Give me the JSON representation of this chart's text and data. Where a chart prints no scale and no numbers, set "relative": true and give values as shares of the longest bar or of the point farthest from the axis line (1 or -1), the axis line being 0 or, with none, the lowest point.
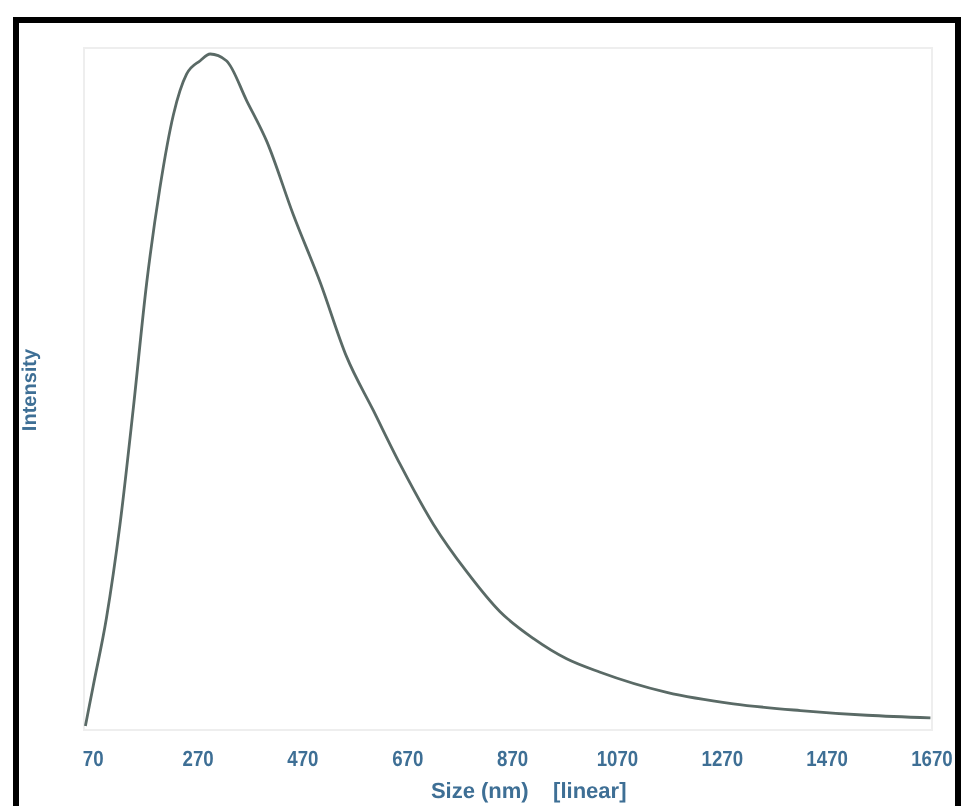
{
  "chart_data": {
    "type": "line",
    "xlabel": "Size (nm)    [linear]",
    "ylabel": "Intensity",
    "relative": true,
    "tick_labels": "x",
    "xlim": [
      55,
      1670
    ],
    "xticks": [
      70,
      270,
      470,
      670,
      870,
      1070,
      1270,
      1470,
      1670
    ],
    "x": [
      55,
      70,
      95,
      121,
      146,
      172,
      197,
      223,
      248,
      274,
      293,
      324,
      363,
      401,
      452,
      503,
      553,
      604,
      655,
      719,
      782,
      846,
      910,
      973,
      1037,
      1164,
      1291,
      1419,
      1546,
      1667
    ],
    "series": [
      {
        "color": "#5a6a66",
        "values": [
          0,
          0.06,
          0.16,
          0.3,
          0.47,
          0.66,
          0.8,
          0.91,
          0.97,
          0.99,
          1,
          0.99,
          0.93,
          0.87,
          0.76,
          0.66,
          0.55,
          0.47,
          0.39,
          0.3,
          0.23,
          0.17,
          0.13,
          0.1,
          0.08,
          0.05,
          0.033,
          0.023,
          0.016,
          0.012
        ]
      }
    ]
  }
}
